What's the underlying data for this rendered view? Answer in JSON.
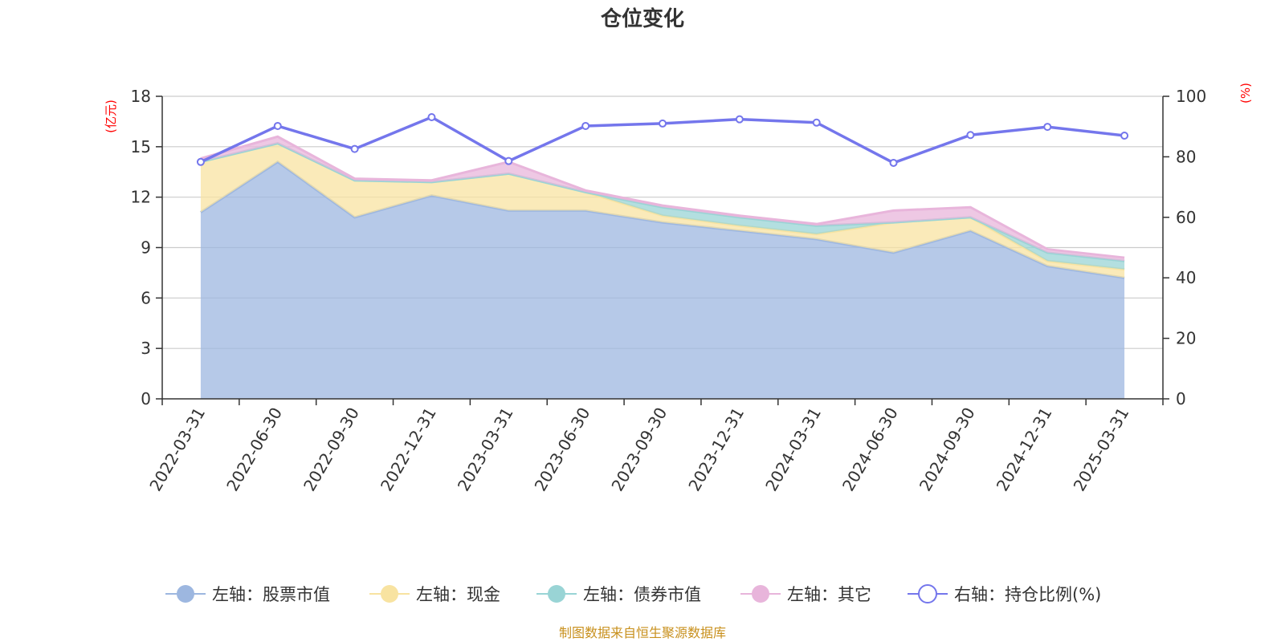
{
  "chart_data": {
    "type": "area",
    "title": "仓位变化",
    "left_axis_unit": "(亿元)",
    "right_axis_unit": "(%)",
    "categories": [
      "2022-03-31",
      "2022-06-30",
      "2022-09-30",
      "2022-12-31",
      "2023-03-31",
      "2023-06-30",
      "2023-09-30",
      "2023-12-31",
      "2024-03-31",
      "2024-06-30",
      "2024-09-30",
      "2024-12-31",
      "2025-03-31"
    ],
    "left_ylim": [
      0,
      18
    ],
    "left_ticks": [
      "0",
      "3",
      "6",
      "9",
      "12",
      "15",
      "18"
    ],
    "right_ylim": [
      0,
      100
    ],
    "right_ticks": [
      "0",
      "20",
      "40",
      "60",
      "80",
      "100"
    ],
    "grid": true,
    "legend_position": "bottom",
    "series": [
      {
        "name": "左轴：股票市值",
        "axis": "left",
        "kind": "stacked-area",
        "color": "#9db7e0",
        "values": [
          11.1,
          14.1,
          10.8,
          12.1,
          11.2,
          11.2,
          10.5,
          10.0,
          9.5,
          8.7,
          10.0,
          7.9,
          7.2
        ]
      },
      {
        "name": "左轴：现金",
        "axis": "left",
        "kind": "stacked-area",
        "color": "#f8e3a1",
        "values": [
          3.0,
          1.1,
          2.2,
          0.8,
          2.2,
          1.1,
          0.4,
          0.3,
          0.3,
          1.8,
          0.8,
          0.3,
          0.5
        ]
      },
      {
        "name": "左轴：债券市值",
        "axis": "left",
        "kind": "stacked-area",
        "color": "#99d4d5",
        "values": [
          0,
          0,
          0,
          0,
          0,
          0,
          0.5,
          0.5,
          0.5,
          0,
          0,
          0.5,
          0.5
        ]
      },
      {
        "name": "左轴：其它",
        "axis": "left",
        "kind": "stacked-area",
        "color": "#e8b5db",
        "values": [
          0.2,
          0.4,
          0.1,
          0.1,
          0.7,
          0.1,
          0.1,
          0.1,
          0.1,
          0.7,
          0.6,
          0.2,
          0.2
        ]
      },
      {
        "name": "右轴：持仓比例(%)",
        "axis": "right",
        "kind": "line",
        "color": "#7476ec",
        "values": [
          78.3,
          90.2,
          82.6,
          93.1,
          78.6,
          90.2,
          91.0,
          92.4,
          91.3,
          78.0,
          87.2,
          89.9,
          87.0
        ]
      }
    ]
  },
  "source_note": "制图数据来自恒生聚源数据库"
}
